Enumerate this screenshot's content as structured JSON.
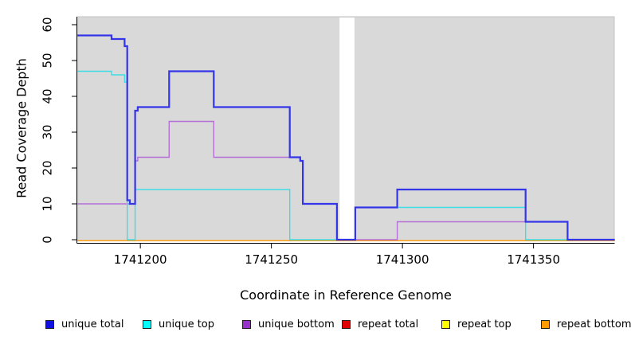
{
  "chart_data": {
    "type": "line",
    "step_style": "post",
    "title": "",
    "xlabel": "Coordinate in Reference Genome",
    "ylabel": "Read Coverage Depth",
    "x_ticks": [
      1741200,
      1741250,
      1741300,
      1741350
    ],
    "y_ticks": [
      0,
      10,
      20,
      30,
      40,
      50,
      60
    ],
    "xlim": [
      1741176,
      1741381
    ],
    "ylim": [
      0,
      62
    ],
    "grid": false,
    "legend_position": "bottom",
    "panel_background": "#d9d9d9",
    "panel_border": "#c2c2c2",
    "gap_region": {
      "start": 1741276,
      "end": 1741281.7,
      "color": "#ffffff"
    },
    "series": [
      {
        "name": "unique total",
        "line_color": "#3434e8",
        "legend_color": "#1010e0",
        "line_width": 2.2,
        "points": [
          [
            1741176,
            57
          ],
          [
            1741189,
            56
          ],
          [
            1741194,
            54
          ],
          [
            1741195,
            11
          ],
          [
            1741196,
            10
          ],
          [
            1741198,
            36
          ],
          [
            1741199,
            37
          ],
          [
            1741211,
            47
          ],
          [
            1741228,
            37
          ],
          [
            1741257,
            23
          ],
          [
            1741261,
            22
          ],
          [
            1741262,
            10
          ],
          [
            1741275,
            0
          ],
          [
            1741282,
            9
          ],
          [
            1741298,
            14
          ],
          [
            1741347,
            5
          ],
          [
            1741363,
            0
          ]
        ]
      },
      {
        "name": "unique top",
        "line_color": "#3fdce6",
        "legend_color": "#00ffff",
        "line_width": 1.4,
        "points": [
          [
            1741176,
            47
          ],
          [
            1741189,
            46
          ],
          [
            1741194,
            44
          ],
          [
            1741195,
            0
          ],
          [
            1741198,
            14
          ],
          [
            1741257,
            0
          ],
          [
            1741282,
            9
          ],
          [
            1741347,
            0
          ]
        ]
      },
      {
        "name": "unique bottom",
        "line_color": "#b46fd9",
        "legend_color": "#9932cc",
        "line_width": 1.4,
        "points": [
          [
            1741176,
            10
          ],
          [
            1741198,
            22
          ],
          [
            1741199,
            23
          ],
          [
            1741211,
            33
          ],
          [
            1741228,
            23
          ],
          [
            1741261,
            22
          ],
          [
            1741262,
            10
          ],
          [
            1741275,
            0
          ],
          [
            1741298,
            5
          ],
          [
            1741363,
            0
          ]
        ]
      },
      {
        "name": "repeat total",
        "line_color": "#e00000",
        "legend_color": "#e00000",
        "line_width": 1.4,
        "points": [
          [
            1741176,
            0
          ]
        ]
      },
      {
        "name": "repeat top",
        "line_color": "#ffff00",
        "legend_color": "#ffff00",
        "line_width": 1.4,
        "points": [
          [
            1741176,
            0
          ]
        ]
      },
      {
        "name": "repeat bottom",
        "line_color": "#ff9d1a",
        "legend_color": "#ff9d00",
        "line_width": 1.4,
        "points": [
          [
            1741176,
            0
          ]
        ]
      }
    ]
  }
}
